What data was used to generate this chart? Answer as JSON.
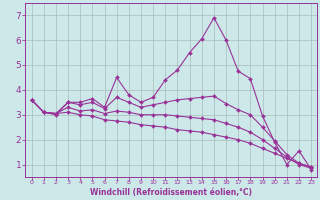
{
  "x": [
    0,
    1,
    2,
    3,
    4,
    5,
    6,
    7,
    8,
    9,
    10,
    11,
    12,
    13,
    14,
    15,
    16,
    17,
    18,
    19,
    20,
    21,
    22,
    23
  ],
  "line1": [
    3.6,
    3.1,
    3.0,
    3.5,
    3.5,
    3.65,
    3.3,
    4.5,
    3.8,
    3.5,
    3.7,
    4.4,
    4.8,
    5.5,
    6.05,
    6.9,
    6.0,
    4.75,
    4.45,
    2.95,
    1.9,
    1.0,
    1.55,
    0.8
  ],
  "line2": [
    3.6,
    3.1,
    3.05,
    3.5,
    3.4,
    3.5,
    3.25,
    3.7,
    3.5,
    3.3,
    3.4,
    3.5,
    3.6,
    3.65,
    3.7,
    3.75,
    3.45,
    3.2,
    3.0,
    2.5,
    1.95,
    1.4,
    1.05,
    0.9
  ],
  "line3": [
    3.6,
    3.1,
    3.05,
    3.3,
    3.15,
    3.2,
    3.05,
    3.15,
    3.1,
    3.0,
    3.0,
    3.0,
    2.95,
    2.9,
    2.85,
    2.8,
    2.65,
    2.5,
    2.3,
    2.0,
    1.65,
    1.3,
    1.0,
    0.85
  ],
  "line4": [
    3.6,
    3.1,
    3.05,
    3.1,
    3.0,
    2.95,
    2.8,
    2.75,
    2.7,
    2.6,
    2.55,
    2.5,
    2.4,
    2.35,
    2.3,
    2.2,
    2.1,
    2.0,
    1.85,
    1.65,
    1.45,
    1.25,
    1.05,
    0.9
  ],
  "color": "#993399",
  "bg_color": "#cce8e8",
  "grid_color": "#aabbbb",
  "xlabel": "Windchill (Refroidissement éolien,°C)",
  "xlim": [
    -0.5,
    23.5
  ],
  "ylim": [
    0.5,
    7.5
  ],
  "yticks": [
    1,
    2,
    3,
    4,
    5,
    6,
    7
  ],
  "xticks": [
    0,
    1,
    2,
    3,
    4,
    5,
    6,
    7,
    8,
    9,
    10,
    11,
    12,
    13,
    14,
    15,
    16,
    17,
    18,
    19,
    20,
    21,
    22,
    23
  ],
  "marker_size": 2.0,
  "line_width": 0.8
}
